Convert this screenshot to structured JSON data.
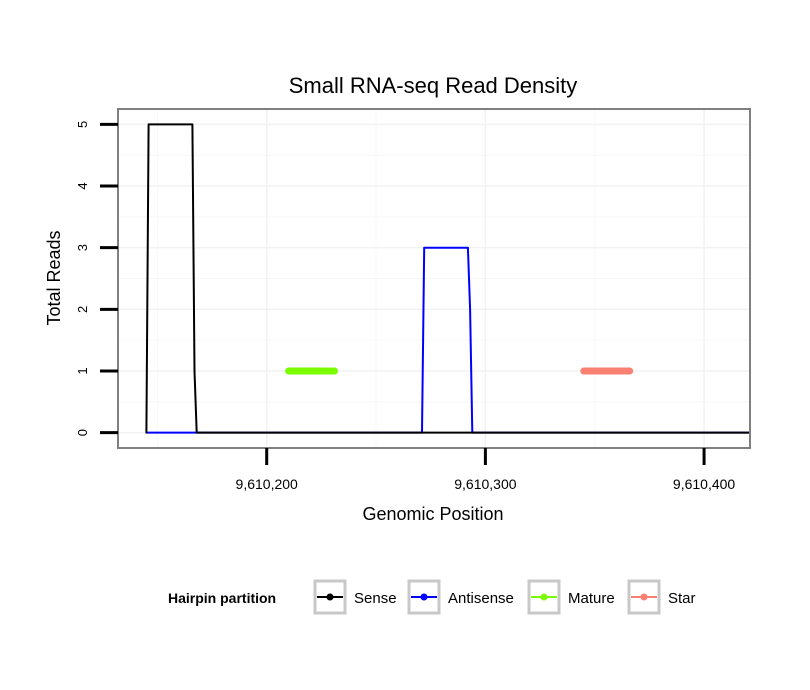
{
  "chart_data": {
    "type": "line",
    "title": "Small RNA-seq Read Density",
    "xlabel": "Genomic Position",
    "ylabel": "Total Reads",
    "xlim": [
      9610132,
      9610421
    ],
    "ylim": [
      -0.25,
      5.25
    ],
    "x_ticks": [
      9610200,
      9610300,
      9610400
    ],
    "x_tick_labels": [
      "9,610,200",
      "9,610,300",
      "9,610,400"
    ],
    "y_ticks": [
      0,
      1,
      2,
      3,
      4,
      5
    ],
    "y_tick_labels": [
      "0",
      "1",
      "2",
      "3",
      "4",
      "5"
    ],
    "grid": true,
    "legend": {
      "title": "Hairpin partition",
      "position": "bottom",
      "entries": [
        "Sense",
        "Antisense",
        "Mature",
        "Star"
      ]
    },
    "series": [
      {
        "name": "Sense",
        "color": "#000000",
        "points": [
          [
            9610145,
            0
          ],
          [
            9610146,
            5
          ],
          [
            9610166,
            5
          ],
          [
            9610167,
            1
          ],
          [
            9610168,
            0
          ],
          [
            9610421,
            0
          ]
        ]
      },
      {
        "name": "Antisense",
        "color": "#0000ff",
        "points": [
          [
            9610145,
            0
          ],
          [
            9610271,
            0
          ],
          [
            9610272,
            3
          ],
          [
            9610292,
            3
          ],
          [
            9610293,
            2
          ],
          [
            9610294,
            0
          ],
          [
            9610421,
            0
          ]
        ]
      },
      {
        "name": "Mature",
        "color": "#7cfc00",
        "points": [
          [
            9610210,
            1
          ],
          [
            9610231,
            1
          ]
        ]
      },
      {
        "name": "Star",
        "color": "#fa8072",
        "points": [
          [
            9610345,
            1
          ],
          [
            9610366,
            1
          ]
        ]
      }
    ]
  }
}
